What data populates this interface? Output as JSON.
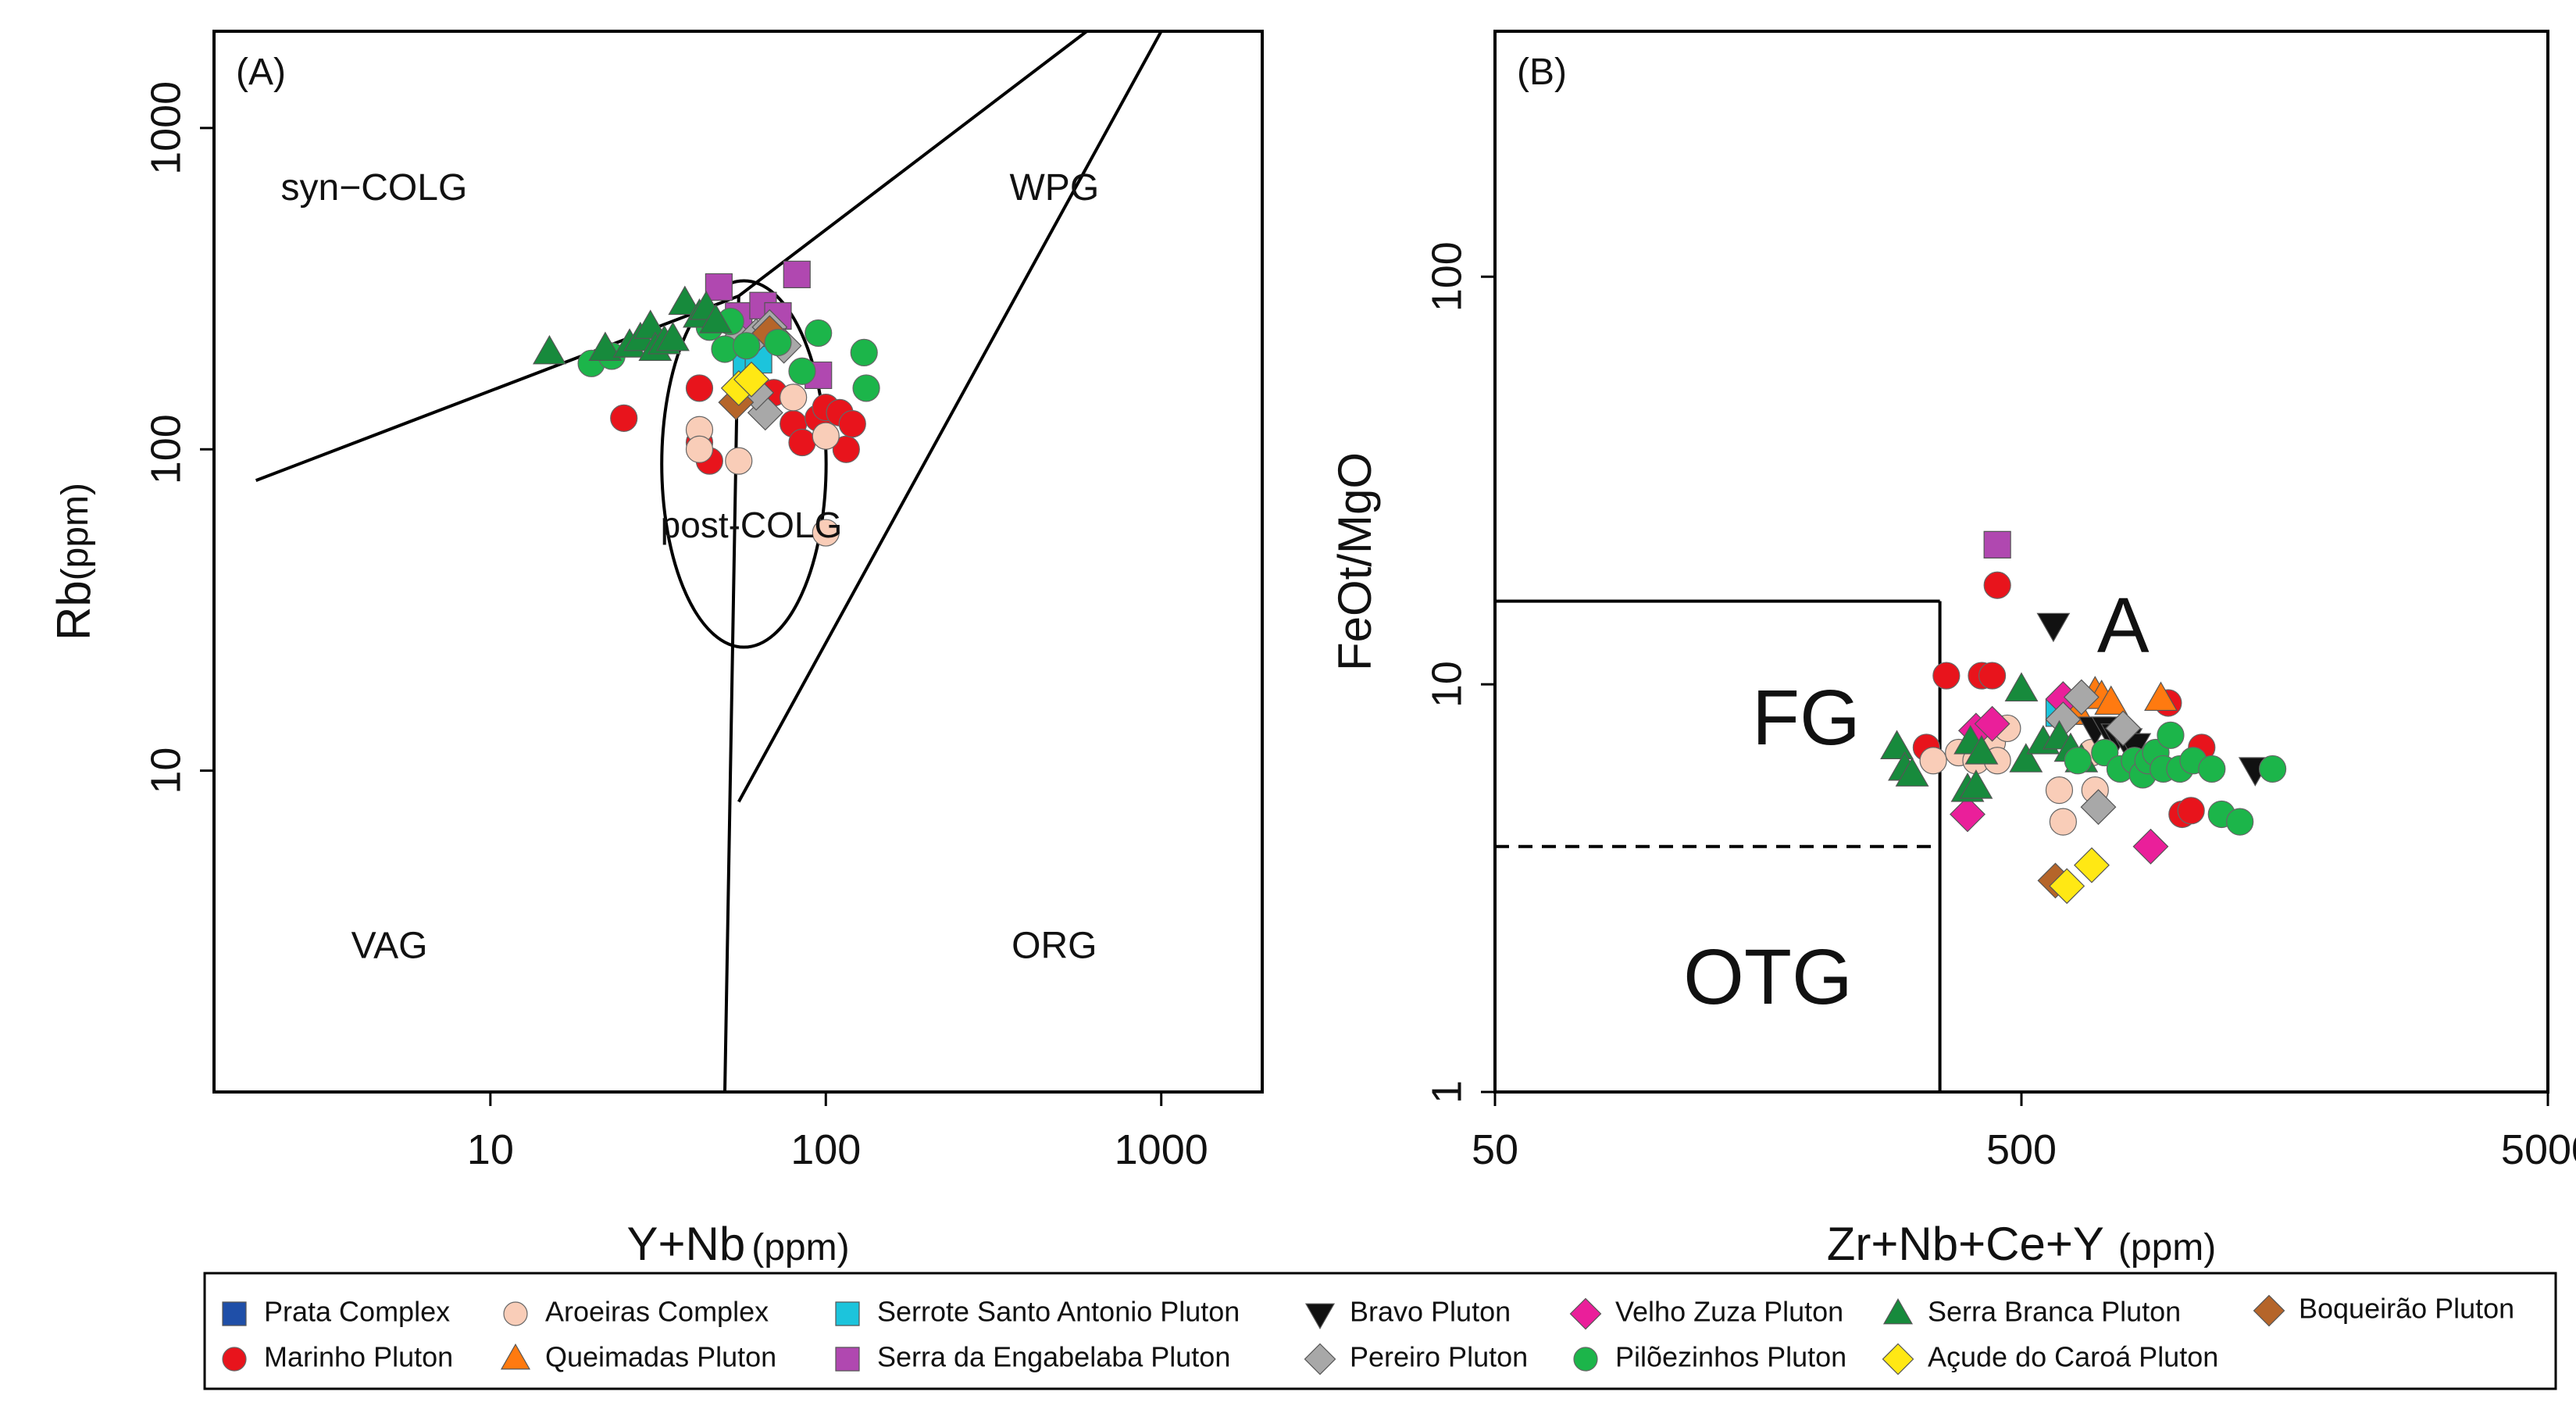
{
  "chart_data": [
    {
      "type": "scatter",
      "panel_label": "(A)",
      "xlabel_main": "Y+Nb",
      "xlabel_unit": "(ppm)",
      "ylabel_main": "Rb",
      "ylabel_unit": "(ppm)",
      "x_scale": "log",
      "y_scale": "log",
      "xlim": [
        1.5,
        2000
      ],
      "ylim": [
        1,
        2000
      ],
      "x_ticks": [
        {
          "v": 10,
          "label": "10"
        },
        {
          "v": 100,
          "label": "100"
        },
        {
          "v": 1000,
          "label": "1000"
        }
      ],
      "y_ticks": [
        {
          "v": 10,
          "label": "10"
        },
        {
          "v": 100,
          "label": "100"
        },
        {
          "v": 1000,
          "label": "1000"
        }
      ],
      "fields": [
        {
          "label": "syn−COLG",
          "x": 4.5,
          "y": 640
        },
        {
          "label": "WPG",
          "x": 480,
          "y": 640
        },
        {
          "label": "post-COLG",
          "x": 60,
          "y": 57
        },
        {
          "label": "VAG",
          "x": 5,
          "y": 2.8
        },
        {
          "label": "ORG",
          "x": 480,
          "y": 2.8
        }
      ],
      "boundaries": [
        [
          [
            2,
            80
          ],
          [
            55,
            300
          ]
        ],
        [
          [
            55,
            300
          ],
          [
            600,
            2000
          ]
        ],
        [
          [
            55,
            300
          ],
          [
            50,
            1
          ]
        ],
        [
          [
            55,
            8
          ],
          [
            1000,
            2000
          ]
        ]
      ],
      "ellipse": {
        "cx": 57,
        "cy": 90,
        "rx_log": 0.245,
        "ry_log": 0.57
      },
      "series": [
        {
          "name": "Marinho Pluton",
          "points": [
            [
              25,
              125
            ],
            [
              42,
              155
            ],
            [
              42,
              105
            ],
            [
              45,
              92
            ],
            [
              70,
              150
            ],
            [
              80,
              120
            ],
            [
              85,
              105
            ],
            [
              95,
              125
            ],
            [
              100,
              135
            ],
            [
              110,
              130
            ],
            [
              115,
              100
            ],
            [
              120,
              120
            ]
          ]
        },
        {
          "name": "Aroeiras Complex",
          "points": [
            [
              42,
              115
            ],
            [
              42,
              100
            ],
            [
              55,
              92
            ],
            [
              80,
              145
            ],
            [
              100,
              110
            ],
            [
              100,
              55
            ]
          ]
        },
        {
          "name": "Serrote Santo Antonio Pluton",
          "points": [
            [
              58,
              180
            ],
            [
              63,
              190
            ]
          ]
        },
        {
          "name": "Serra da Engabelaba Pluton",
          "points": [
            [
              48,
              320
            ],
            [
              55,
              260
            ],
            [
              65,
              280
            ],
            [
              72,
              260
            ],
            [
              82,
              350
            ],
            [
              95,
              170
            ]
          ]
        },
        {
          "name": "Pereiro Pluton",
          "points": [
            [
              55,
              220
            ],
            [
              62,
              225
            ],
            [
              68,
              240
            ],
            [
              75,
              210
            ],
            [
              66,
              130
            ],
            [
              62,
              150
            ]
          ]
        },
        {
          "name": "Boqueirão Pluton",
          "points": [
            [
              54,
              140
            ],
            [
              68,
              230
            ]
          ]
        },
        {
          "name": "Açude do Caroá Pluton",
          "points": [
            [
              55,
              155
            ],
            [
              60,
              165
            ]
          ]
        },
        {
          "name": "Pilõezinhos Pluton",
          "points": [
            [
              20,
              185
            ],
            [
              23,
              195
            ],
            [
              45,
              240
            ],
            [
              50,
              205
            ],
            [
              52,
              250
            ],
            [
              58,
              210
            ],
            [
              72,
              215
            ],
            [
              85,
              175
            ],
            [
              95,
              230
            ],
            [
              130,
              200
            ],
            [
              132,
              155
            ]
          ]
        },
        {
          "name": "Serra Branca Pluton",
          "points": [
            [
              15,
              200
            ],
            [
              22,
              205
            ],
            [
              26,
              210
            ],
            [
              28,
              220
            ],
            [
              30,
              240
            ],
            [
              31,
              205
            ],
            [
              33,
              215
            ],
            [
              35,
              220
            ],
            [
              38,
              285
            ],
            [
              42,
              260
            ],
            [
              44,
              275
            ],
            [
              47,
              250
            ]
          ]
        }
      ]
    },
    {
      "type": "scatter",
      "panel_label": "(B)",
      "xlabel_main": "Zr+Nb+Ce+Y",
      "xlabel_unit": "(ppm)",
      "ylabel_main": "FeOt/MgO",
      "ylabel_unit": "",
      "x_scale": "log",
      "y_scale": "log",
      "xlim": [
        50,
        5000
      ],
      "ylim": [
        1,
        400
      ],
      "x_ticks": [
        {
          "v": 50,
          "label": "50"
        },
        {
          "v": 500,
          "label": "500"
        },
        {
          "v": 5000,
          "label": "5000"
        }
      ],
      "y_ticks": [
        {
          "v": 1,
          "label": "1"
        },
        {
          "v": 10,
          "label": "10"
        },
        {
          "v": 100,
          "label": "100"
        }
      ],
      "fields": [
        {
          "label": "FG",
          "x": 195,
          "y": 8
        },
        {
          "label": "A",
          "x": 780,
          "y": 13.5
        },
        {
          "label": "OTG",
          "x": 165,
          "y": 1.85
        }
      ],
      "boundaries": [
        [
          [
            50,
            16
          ],
          [
            350,
            16
          ]
        ],
        [
          [
            350,
            16
          ],
          [
            350,
            1
          ]
        ]
      ],
      "dashed_boundaries": [
        [
          [
            50,
            4
          ],
          [
            350,
            4
          ]
        ]
      ],
      "series": [
        {
          "name": "Marinho Pluton",
          "points": [
            [
              330,
              7
            ],
            [
              360,
              10.5
            ],
            [
              420,
              10.5
            ],
            [
              440,
              10.5
            ],
            [
              450,
              17.5
            ],
            [
              950,
              9
            ],
            [
              1010,
              4.8
            ],
            [
              1050,
              4.9
            ],
            [
              1100,
              7
            ]
          ]
        },
        {
          "name": "Aroeiras Complex",
          "points": [
            [
              340,
              6.5
            ],
            [
              380,
              6.8
            ],
            [
              410,
              6.5
            ],
            [
              440,
              7.2
            ],
            [
              450,
              6.5
            ],
            [
              470,
              7.8
            ],
            [
              590,
              5.5
            ],
            [
              600,
              4.6
            ],
            [
              680,
              6.8
            ],
            [
              690,
              5.5
            ]
          ]
        },
        {
          "name": "Serrote Santo Antonio Pluton",
          "points": [
            [
              590,
              8.5
            ],
            [
              620,
              8.9
            ]
          ]
        },
        {
          "name": "Serra da Engabelaba Pluton",
          "points": [
            [
              450,
              22
            ]
          ]
        },
        {
          "name": "Queimadas Pluton",
          "points": [
            [
              640,
              8.5
            ],
            [
              690,
              9.5
            ],
            [
              710,
              9.3
            ],
            [
              740,
              9
            ],
            [
              920,
              9.2
            ]
          ]
        },
        {
          "name": "Bravo Pluton",
          "points": [
            [
              575,
              14
            ],
            [
              690,
              7.8
            ],
            [
              730,
              7.8
            ],
            [
              760,
              7.5
            ],
            [
              790,
              7.3
            ],
            [
              820,
              7.1
            ],
            [
              1390,
              6.2
            ]
          ]
        },
        {
          "name": "Velho Zuza Pluton",
          "points": [
            [
              395,
              4.8
            ],
            [
              410,
              7.7
            ],
            [
              440,
              8
            ],
            [
              600,
              9.2
            ],
            [
              880,
              4
            ]
          ]
        },
        {
          "name": "Pereiro Pluton",
          "points": [
            [
              600,
              8.2
            ],
            [
              650,
              9.3
            ],
            [
              700,
              5
            ],
            [
              780,
              7.8
            ]
          ]
        },
        {
          "name": "Serra Branca Pluton",
          "points": [
            [
              290,
              7
            ],
            [
              300,
              6.2
            ],
            [
              310,
              6
            ],
            [
              395,
              5.5
            ],
            [
              400,
              7.2
            ],
            [
              410,
              5.6
            ],
            [
              420,
              6.8
            ],
            [
              500,
              9.7
            ],
            [
              510,
              6.5
            ],
            [
              550,
              7.2
            ],
            [
              590,
              7.4
            ],
            [
              620,
              6.9
            ],
            [
              650,
              6.5
            ]
          ]
        },
        {
          "name": "Pilõezinhos Pluton",
          "points": [
            [
              640,
              6.5
            ],
            [
              720,
              6.8
            ],
            [
              770,
              6.2
            ],
            [
              820,
              6.5
            ],
            [
              850,
              6
            ],
            [
              870,
              6.5
            ],
            [
              900,
              6.8
            ],
            [
              930,
              6.2
            ],
            [
              960,
              7.5
            ],
            [
              1000,
              6.2
            ],
            [
              1060,
              6.5
            ],
            [
              1150,
              6.2
            ],
            [
              1200,
              4.8
            ],
            [
              1300,
              4.6
            ],
            [
              1500,
              6.2
            ]
          ]
        },
        {
          "name": "Boqueirão Pluton",
          "points": [
            [
              580,
              3.3
            ]
          ]
        },
        {
          "name": "Açude do Caroá Pluton",
          "points": [
            [
              610,
              3.2
            ],
            [
              680,
              3.6
            ]
          ]
        }
      ]
    }
  ],
  "legend": [
    {
      "name": "Prata Complex",
      "marker": "square",
      "color": "#1f4fa8"
    },
    {
      "name": "Marinho Pluton",
      "marker": "circle",
      "color": "#e8141c"
    },
    {
      "name": "Aroeiras Complex",
      "marker": "circle",
      "color": "#f9cdb8"
    },
    {
      "name": "Queimadas Pluton",
      "marker": "triangle-up",
      "color": "#ff7a10"
    },
    {
      "name": "Serrote Santo Antonio Pluton",
      "marker": "square",
      "color": "#1cc4dc"
    },
    {
      "name": "Serra da Engabelaba Pluton",
      "marker": "square",
      "color": "#b048b0"
    },
    {
      "name": "Bravo Pluton",
      "marker": "triangle-down",
      "color": "#111111"
    },
    {
      "name": "Pereiro Pluton",
      "marker": "diamond",
      "color": "#a8a8a8"
    },
    {
      "name": "Velho Zuza Pluton",
      "marker": "diamond",
      "color": "#ea1f9a"
    },
    {
      "name": "Pilõezinhos Pluton",
      "marker": "circle",
      "color": "#1cb54a"
    },
    {
      "name": "Serra Branca Pluton",
      "marker": "triangle-up",
      "color": "#178a3c"
    },
    {
      "name": "Açude do Caroá Pluton",
      "marker": "diamond",
      "color": "#ffe814"
    },
    {
      "name": "Boqueirão Pluton",
      "marker": "diamond",
      "color": "#b5652a"
    }
  ]
}
